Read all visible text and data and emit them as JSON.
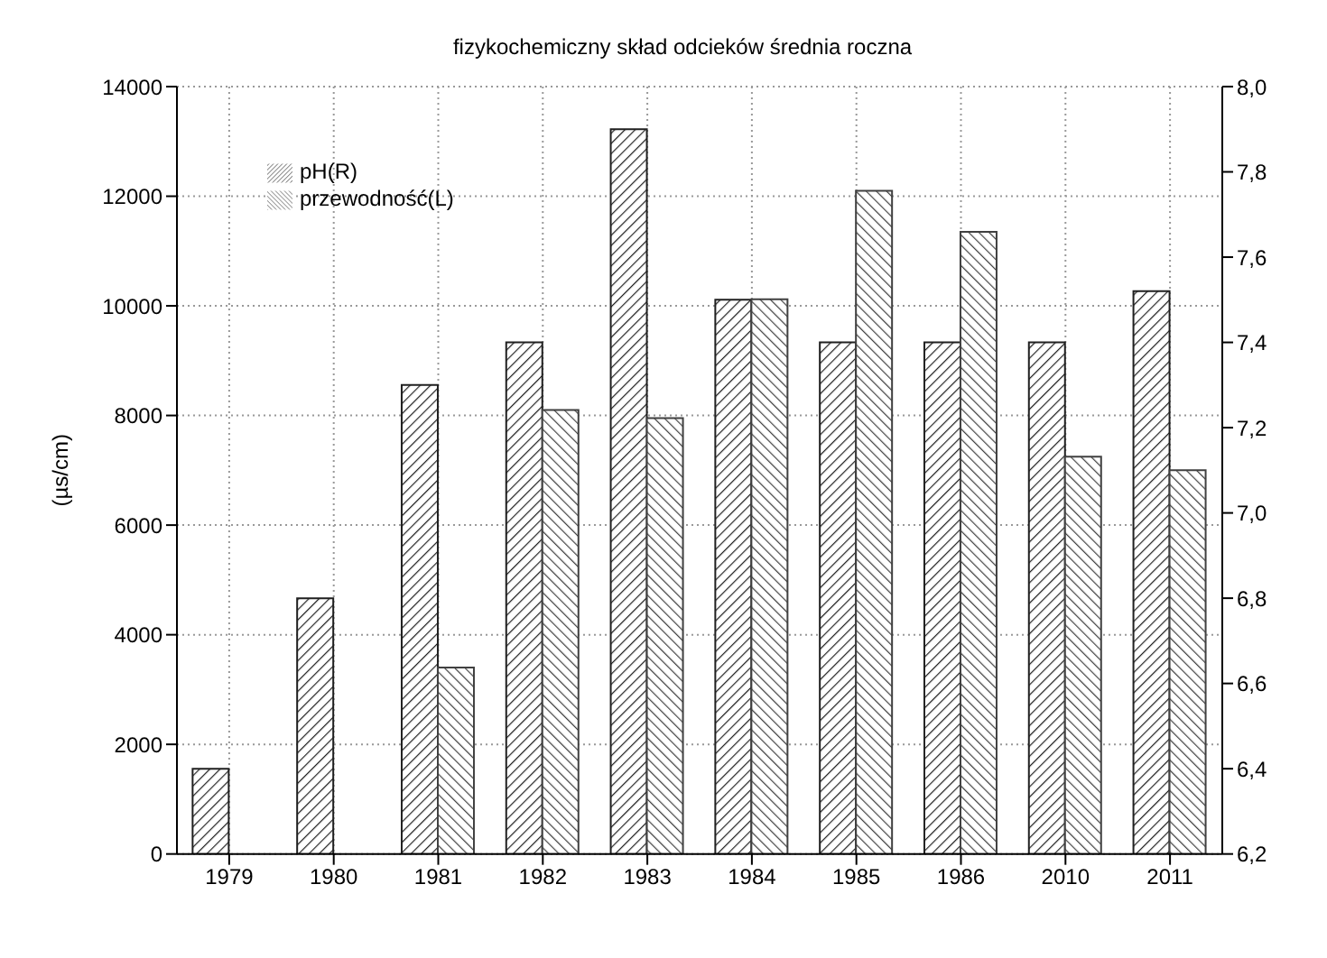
{
  "chart_data": {
    "type": "bar",
    "title": "fizykochemiczny skład odcieków średnia roczna",
    "ylabel": "(µs/cm)",
    "categories": [
      "1979",
      "1980",
      "1981",
      "1982",
      "1983",
      "1984",
      "1985",
      "1986",
      "2010",
      "2011"
    ],
    "series": [
      {
        "name": "pH(R)",
        "color": "#202020",
        "axis": "y2",
        "values": [
          6.4,
          6.8,
          7.3,
          7.4,
          7.9,
          7.5,
          7.4,
          7.4,
          7.4,
          7.52
        ]
      },
      {
        "name": "przewodność(L)",
        "color": "#404040",
        "values": [
          null,
          null,
          3400,
          8100,
          7950,
          10120,
          12100,
          11350,
          7250,
          7000
        ]
      }
    ],
    "ylim": [
      0,
      14000
    ],
    "yticks": [
      0,
      2000,
      4000,
      6000,
      8000,
      10000,
      12000,
      14000
    ],
    "y2lim": [
      6.2,
      8.0
    ],
    "y2ticks": [
      {
        "value": 6.2,
        "label": "6,2"
      },
      {
        "value": 6.4,
        "label": "6,4"
      },
      {
        "value": 6.6,
        "label": "6,6"
      },
      {
        "value": 6.8,
        "label": "6,8"
      },
      {
        "value": 7.0,
        "label": "7,0"
      },
      {
        "value": 7.2,
        "label": "7,2"
      },
      {
        "value": 7.4,
        "label": "7,4"
      },
      {
        "value": 7.6,
        "label": "7,6"
      },
      {
        "value": 7.8,
        "label": "7,8"
      },
      {
        "value": 8.0,
        "label": "8,0"
      }
    ],
    "grid": true,
    "legend": "top left"
  }
}
